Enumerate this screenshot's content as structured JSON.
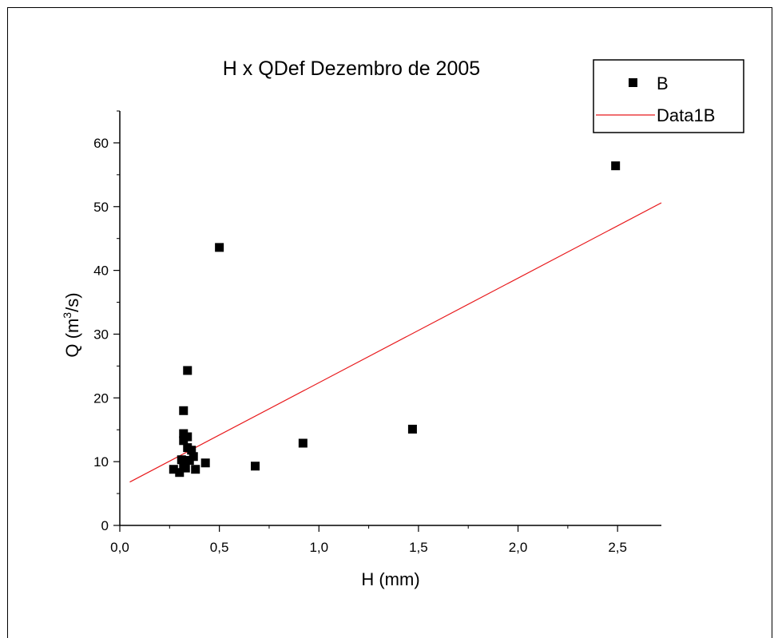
{
  "chart_data": {
    "type": "scatter",
    "title": "H x QDef Dezembro de 2005",
    "xlabel": "H (mm)",
    "ylabel_main": "Q (m",
    "ylabel_sup": "3",
    "ylabel_tail": "/s)",
    "xlim": [
      0,
      2.72
    ],
    "ylim": [
      0,
      65
    ],
    "x_ticks": [
      0,
      0.5,
      1.0,
      1.5,
      2.0,
      2.5
    ],
    "x_tick_labels": [
      "0,0",
      "0,5",
      "1,0",
      "1,5",
      "2,0",
      "2,5"
    ],
    "y_ticks": [
      0,
      10,
      20,
      30,
      40,
      50,
      60
    ],
    "y_tick_labels": [
      "0",
      "10",
      "20",
      "30",
      "40",
      "50",
      "60"
    ],
    "legend_position": "top-right",
    "series": [
      {
        "name": "B",
        "kind": "scatter",
        "marker": "square",
        "color": "#000000",
        "points": [
          [
            0.27,
            8.8
          ],
          [
            0.3,
            8.3
          ],
          [
            0.31,
            10.3
          ],
          [
            0.32,
            9.5
          ],
          [
            0.32,
            13.3
          ],
          [
            0.32,
            14.4
          ],
          [
            0.32,
            18.0
          ],
          [
            0.33,
            9.0
          ],
          [
            0.34,
            12.2
          ],
          [
            0.34,
            13.9
          ],
          [
            0.34,
            24.3
          ],
          [
            0.35,
            10.2
          ],
          [
            0.36,
            11.8
          ],
          [
            0.37,
            10.8
          ],
          [
            0.38,
            8.8
          ],
          [
            0.43,
            9.8
          ],
          [
            0.5,
            43.6
          ],
          [
            0.68,
            9.3
          ],
          [
            0.92,
            12.9
          ],
          [
            1.47,
            15.1
          ],
          [
            2.49,
            56.4
          ]
        ]
      },
      {
        "name": "Data1B",
        "kind": "line",
        "color": "#e8191c",
        "points": [
          [
            0.05,
            6.8
          ],
          [
            2.72,
            50.6
          ]
        ]
      }
    ]
  }
}
